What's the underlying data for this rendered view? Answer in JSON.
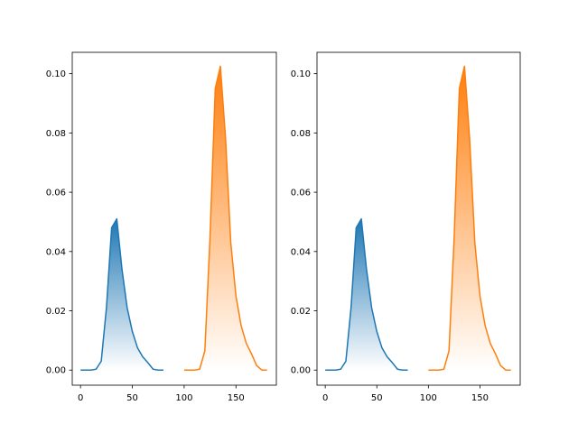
{
  "chart_data": [
    {
      "type": "area",
      "xlim": [
        -8,
        189
      ],
      "ylim": [
        -0.0051,
        0.1072
      ],
      "xticks": [
        0,
        50,
        100,
        150
      ],
      "yticks": [
        0.0,
        0.02,
        0.04,
        0.06,
        0.08,
        0.1
      ],
      "xtick_labels": [
        "0",
        "50",
        "100",
        "150"
      ],
      "ytick_labels": [
        "0.00",
        "0.02",
        "0.04",
        "0.06",
        "0.08",
        "0.10"
      ],
      "grid": false,
      "fill": "gradient-to-zero",
      "series": [
        {
          "color": "#1f77b4",
          "x": [
            0,
            5,
            10,
            15,
            20,
            25,
            30,
            35,
            40,
            45,
            50,
            55,
            60,
            65,
            70,
            75,
            80
          ],
          "y": [
            0.0,
            0.0,
            0.0,
            0.0003,
            0.003,
            0.021,
            0.048,
            0.051,
            0.034,
            0.021,
            0.013,
            0.0075,
            0.0045,
            0.0025,
            0.0003,
            0.0,
            0.0
          ]
        },
        {
          "color": "#ff7f0e",
          "x": [
            100,
            105,
            110,
            115,
            120,
            125,
            130,
            135,
            140,
            145,
            150,
            155,
            160,
            165,
            170,
            175,
            180
          ],
          "y": [
            0.0,
            0.0,
            0.0,
            0.0003,
            0.0065,
            0.045,
            0.095,
            0.1025,
            0.078,
            0.043,
            0.025,
            0.015,
            0.009,
            0.0055,
            0.0015,
            0.0,
            0.0
          ]
        }
      ]
    },
    {
      "type": "area",
      "xlim": [
        -8,
        189
      ],
      "ylim": [
        -0.0051,
        0.1072
      ],
      "xticks": [
        0,
        50,
        100,
        150
      ],
      "yticks": [
        0.0,
        0.02,
        0.04,
        0.06,
        0.08,
        0.1
      ],
      "xtick_labels": [
        "0",
        "50",
        "100",
        "150"
      ],
      "ytick_labels": [
        "0.00",
        "0.02",
        "0.04",
        "0.06",
        "0.08",
        "0.10"
      ],
      "grid": false,
      "fill": "gradient-to-zero",
      "series": [
        {
          "color": "#1f77b4",
          "x": [
            0,
            5,
            10,
            15,
            20,
            25,
            30,
            35,
            40,
            45,
            50,
            55,
            60,
            65,
            70,
            75,
            80
          ],
          "y": [
            0.0,
            0.0,
            0.0,
            0.0003,
            0.003,
            0.021,
            0.048,
            0.051,
            0.034,
            0.021,
            0.013,
            0.0075,
            0.0045,
            0.0025,
            0.0003,
            0.0,
            0.0
          ]
        },
        {
          "color": "#ff7f0e",
          "x": [
            100,
            105,
            110,
            115,
            120,
            125,
            130,
            135,
            140,
            145,
            150,
            155,
            160,
            165,
            170,
            175,
            180
          ],
          "y": [
            0.0,
            0.0,
            0.0,
            0.0003,
            0.0065,
            0.045,
            0.095,
            0.1025,
            0.078,
            0.043,
            0.025,
            0.015,
            0.009,
            0.0055,
            0.0015,
            0.0,
            0.0
          ]
        }
      ]
    }
  ]
}
